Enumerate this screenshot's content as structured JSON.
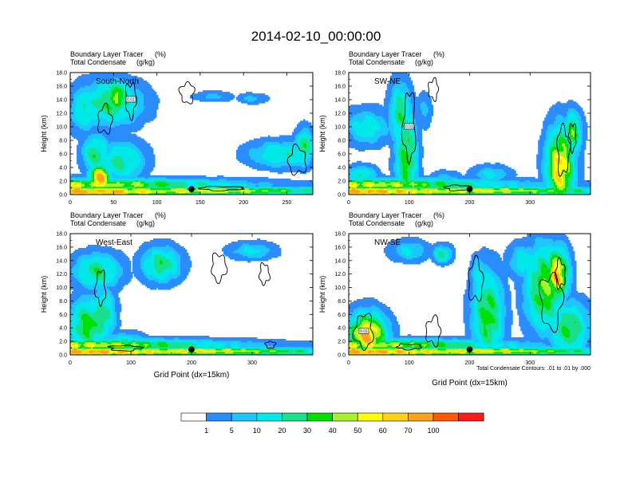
{
  "figure": {
    "title": "2014-02-10_00:00:00",
    "contour_note": "Total Condensate Contours: .01 to .01 by .000",
    "colorbar_labels": [
      "1",
      "5",
      "10",
      "20",
      "30",
      "40",
      "50",
      "60",
      "70",
      "100"
    ],
    "colorbar_colors": [
      "#ffffff",
      "#2a8cff",
      "#1ec6ff",
      "#00e8e8",
      "#19e08a",
      "#00e000",
      "#a8f030",
      "#ffff00",
      "#ffd21a",
      "#ffa01e",
      "#ff5a00",
      "#ff1a1a"
    ]
  },
  "chart_data": [
    {
      "type": "heatmap",
      "title": "South-North",
      "title_left_1": "Boundary Layer Tracer",
      "title_left_1_unit": "(%)",
      "title_left_2": "Total Condensate",
      "title_left_2_unit": "(g/kg)",
      "ylabel": "Height (km)",
      "xlabel": "",
      "x_ticks": [
        "0",
        "50",
        "100",
        "150",
        "200",
        "250"
      ],
      "x_tick_values": [
        0,
        50,
        100,
        150,
        200,
        250
      ],
      "xlim": [
        0,
        280
      ],
      "y_ticks": [
        "0.0",
        "2.0",
        "4.0",
        "6.0",
        "8.0",
        "10.0",
        "12.0",
        "14.0",
        "16.0",
        "18.0"
      ],
      "ylim": [
        0,
        18
      ],
      "marker_x": 140,
      "contour_label": "0.01",
      "blobs": [
        [
          5,
          0.5,
          140,
          0.6,
          95
        ],
        [
          5,
          1.5,
          140,
          0.7,
          65
        ],
        [
          150,
          0.6,
          130,
          0.45,
          70
        ],
        [
          35,
          2.5,
          10,
          1.6,
          90
        ],
        [
          30,
          6.0,
          12,
          2.2,
          35
        ],
        [
          60,
          5.0,
          20,
          2.2,
          30
        ],
        [
          45,
          13.5,
          30,
          2.5,
          35
        ],
        [
          15,
          12.5,
          12,
          2.5,
          25
        ],
        [
          55,
          14.5,
          12,
          1.8,
          55
        ],
        [
          245,
          6.0,
          30,
          1.5,
          25
        ],
        [
          165,
          14.5,
          18,
          0.6,
          8
        ],
        [
          210,
          14.2,
          14,
          0.6,
          8
        ],
        [
          270,
          7.0,
          8,
          2.0,
          40
        ]
      ],
      "clouds": [
        [
          70,
          14.0,
          6,
          2.5
        ],
        [
          135,
          15.0,
          8,
          1.5
        ],
        [
          40,
          11.0,
          8,
          2.0
        ],
        [
          262,
          5.0,
          10,
          2.0
        ],
        [
          175,
          0.9,
          25,
          0.3
        ]
      ]
    },
    {
      "type": "heatmap",
      "title": "SW-NE",
      "title_left_1": "Boundary Layer Tracer",
      "title_left_1_unit": "(%)",
      "title_left_2": "Total Condensate",
      "title_left_2_unit": "(g/kg)",
      "ylabel": "Height (km)",
      "xlabel": "",
      "x_ticks": [
        "0",
        "100",
        "200",
        "300"
      ],
      "x_tick_values": [
        0,
        100,
        200,
        300
      ],
      "xlim": [
        0,
        400
      ],
      "y_ticks": [
        "0.0",
        "2.0",
        "4.0",
        "6.0",
        "8.0",
        "10.0",
        "12.0",
        "14.0",
        "16.0",
        "18.0"
      ],
      "ylim": [
        0,
        18
      ],
      "marker_x": 200,
      "contour_label": "0.01",
      "blobs": [
        [
          5,
          0.5,
          200,
          0.6,
          95
        ],
        [
          5,
          1.5,
          200,
          0.7,
          65
        ],
        [
          210,
          0.6,
          190,
          0.45,
          70
        ],
        [
          95,
          5.5,
          14,
          5.5,
          45
        ],
        [
          85,
          12.0,
          14,
          3.5,
          35
        ],
        [
          30,
          10.0,
          30,
          2.0,
          20
        ],
        [
          350,
          4.0,
          18,
          4.5,
          80
        ],
        [
          370,
          9.0,
          12,
          2.5,
          45
        ],
        [
          20,
          3.0,
          20,
          1.0,
          25
        ],
        [
          235,
          3.0,
          25,
          1.0,
          15
        ],
        [
          125,
          12.5,
          10,
          2.0,
          8
        ],
        [
          160,
          2.5,
          18,
          0.8,
          10
        ]
      ],
      "clouds": [
        [
          100,
          10.0,
          10,
          5.0
        ],
        [
          140,
          15.5,
          8,
          1.5
        ],
        [
          355,
          6.5,
          10,
          3.5
        ],
        [
          370,
          8.5,
          6,
          2.0
        ],
        [
          180,
          1.0,
          20,
          0.4
        ]
      ]
    },
    {
      "type": "heatmap",
      "title": "West-East",
      "title_left_1": "Boundary Layer Tracer",
      "title_left_1_unit": "(%)",
      "title_left_2": "Total Condensate",
      "title_left_2_unit": "(g/kg)",
      "ylabel": "Height (km)",
      "xlabel": "Grid Point (dx=15km)",
      "x_ticks": [
        "0",
        "100",
        "200",
        "300"
      ],
      "x_tick_values": [
        0,
        100,
        200,
        300
      ],
      "xlim": [
        0,
        400
      ],
      "y_ticks": [
        "0.0",
        "2.0",
        "4.0",
        "6.0",
        "8.0",
        "10.0",
        "12.0",
        "14.0",
        "16.0",
        "18.0"
      ],
      "ylim": [
        0,
        18
      ],
      "marker_x": 200,
      "contour_label": "",
      "blobs": [
        [
          5,
          0.5,
          200,
          0.6,
          95
        ],
        [
          5,
          1.5,
          200,
          0.7,
          65
        ],
        [
          210,
          0.6,
          190,
          0.45,
          70
        ],
        [
          30,
          4.5,
          25,
          3.0,
          45
        ],
        [
          55,
          6.0,
          15,
          3.0,
          35
        ],
        [
          45,
          12.5,
          30,
          2.0,
          35
        ],
        [
          150,
          13.5,
          25,
          2.0,
          35
        ],
        [
          300,
          15.5,
          30,
          1.0,
          15
        ],
        [
          90,
          2.0,
          25,
          1.0,
          25
        ]
      ],
      "clouds": [
        [
          50,
          10.0,
          8,
          2.5
        ],
        [
          245,
          13.0,
          12,
          2.0
        ],
        [
          320,
          12.0,
          8,
          1.5
        ],
        [
          330,
          1.5,
          8,
          0.5
        ],
        [
          90,
          1.0,
          25,
          0.4
        ]
      ]
    },
    {
      "type": "heatmap",
      "title": "NW-SE",
      "title_left_1": "Boundary Layer Tracer",
      "title_left_1_unit": "(%)",
      "title_left_2": "Total Condensate",
      "title_left_2_unit": "(g/kg)",
      "ylabel": "Height (km)",
      "xlabel": "Grid Point (dx=15km)",
      "x_ticks": [
        "0",
        "100",
        "200",
        "300"
      ],
      "x_tick_values": [
        0,
        100,
        200,
        300
      ],
      "xlim": [
        0,
        400
      ],
      "y_ticks": [
        "0.0",
        "2.0",
        "4.0",
        "6.0",
        "8.0",
        "10.0",
        "12.0",
        "14.0",
        "16.0",
        "18.0"
      ],
      "ylim": [
        0,
        18
      ],
      "marker_x": 200,
      "contour_label": "0.01",
      "blobs": [
        [
          5,
          0.5,
          200,
          0.6,
          95
        ],
        [
          5,
          1.5,
          200,
          0.7,
          65
        ],
        [
          210,
          0.6,
          190,
          0.45,
          70
        ],
        [
          30,
          3.0,
          25,
          2.5,
          90
        ],
        [
          230,
          6.0,
          20,
          5.0,
          45
        ],
        [
          325,
          10.0,
          25,
          5.0,
          50
        ],
        [
          345,
          12.0,
          15,
          3.0,
          85
        ],
        [
          365,
          4.0,
          25,
          3.0,
          40
        ],
        [
          100,
          15.5,
          25,
          1.2,
          15
        ],
        [
          155,
          15.0,
          12,
          1.0,
          30
        ],
        [
          215,
          12.0,
          10,
          2.0,
          20
        ],
        [
          290,
          14.0,
          20,
          2.0,
          20
        ]
      ],
      "clouds": [
        [
          25,
          3.5,
          15,
          2.5
        ],
        [
          140,
          3.5,
          12,
          2.0
        ],
        [
          210,
          11.0,
          12,
          3.0
        ],
        [
          335,
          8.0,
          18,
          4.0
        ],
        [
          350,
          12.0,
          8,
          2.0
        ],
        [
          100,
          1.2,
          20,
          0.4
        ]
      ]
    }
  ]
}
